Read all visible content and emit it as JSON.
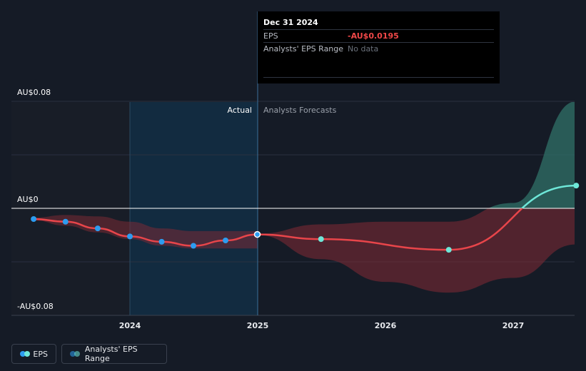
{
  "chart_data": {
    "type": "line",
    "y_tick_labels": [
      "AU$0.08",
      "AU$0",
      "-AU$0.08"
    ],
    "x_tick_labels": [
      "2024",
      "2025",
      "2026",
      "2027"
    ],
    "ylim": [
      -0.08,
      0.08
    ],
    "region_labels": {
      "actual": "Actual",
      "forecast": "Analysts Forecasts"
    },
    "series": [
      {
        "name": "EPS",
        "kind": "actual",
        "x": [
          "2023-04-01",
          "2023-07-01",
          "2023-10-01",
          "2024-01-01",
          "2024-04-01",
          "2024-07-01",
          "2024-10-01",
          "2024-12-31"
        ],
        "y": [
          -0.008,
          -0.01,
          -0.015,
          -0.021,
          -0.025,
          -0.028,
          -0.024,
          -0.0195
        ]
      },
      {
        "name": "EPS",
        "kind": "forecast",
        "x": [
          "2024-12-31",
          "2025-07-01",
          "2026-07-01",
          "2027-06-30"
        ],
        "y": [
          -0.0195,
          -0.023,
          -0.031,
          0.017
        ]
      }
    ],
    "range_actual_band": {
      "x": [
        "2023-04-01",
        "2023-07-01",
        "2023-10-01",
        "2024-01-01",
        "2024-04-01",
        "2024-07-01",
        "2024-10-01",
        "2024-12-31"
      ],
      "upper": [
        -0.007,
        -0.005,
        -0.006,
        -0.01,
        -0.015,
        -0.017,
        -0.017,
        -0.017
      ],
      "lower": [
        -0.009,
        -0.013,
        -0.018,
        -0.023,
        -0.028,
        -0.03,
        -0.03,
        -0.03
      ]
    },
    "range_forecast_band": {
      "x": [
        "2024-12-31",
        "2025-07-01",
        "2026-01-01",
        "2026-07-01",
        "2027-01-01",
        "2027-06-30"
      ],
      "upper": [
        -0.019,
        -0.012,
        -0.01,
        -0.01,
        0.004,
        0.08
      ],
      "lower": [
        -0.02,
        -0.038,
        -0.055,
        -0.063,
        -0.052,
        -0.027
      ]
    },
    "grid": true,
    "legend_position": "bottom-left"
  },
  "tooltip": {
    "date": "Dec 31 2024",
    "eps_label": "EPS",
    "eps_value": "-AU$0.0195",
    "range_label": "Analysts' EPS Range",
    "range_value": "No data"
  },
  "legend": {
    "items": [
      {
        "label": "EPS",
        "colors": [
          "#2d9cf0",
          "#6ee7d8"
        ]
      },
      {
        "label": "Analysts' EPS Range",
        "colors": [
          "#2d9cf0",
          "#6ee7d8"
        ]
      }
    ]
  },
  "colors": {
    "background": "#151b26",
    "eps_line": "#e8454a",
    "actual_point": "#2d9cf0",
    "forecast_point": "#6ee7d8",
    "band_negative": "#7a2a34",
    "band_positive": "#2e6b64",
    "actual_region": "#11324a",
    "grid": "#2a3040",
    "zero_line": "#ffffff"
  }
}
